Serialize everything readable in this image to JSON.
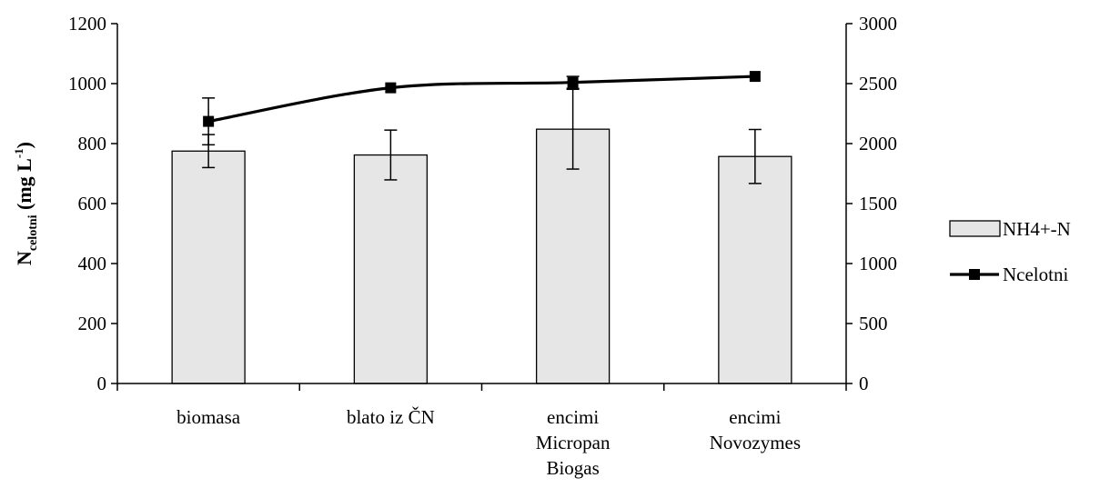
{
  "chart_data": {
    "type": "bar",
    "categories": [
      [
        "biomasa"
      ],
      [
        "blato iz ČN"
      ],
      [
        "encimi",
        "Micropan",
        "Biogas"
      ],
      [
        "encimi",
        "Novozymes"
      ]
    ],
    "ylabel": {
      "main": "N",
      "sub": "celotni",
      "rest": " (mg L",
      "sup": "-1",
      "end": ")"
    },
    "ylim": [
      0,
      1200
    ],
    "y_ticks": [
      0,
      200,
      400,
      600,
      800,
      1000,
      1200
    ],
    "y2lim": [
      0,
      3000
    ],
    "y2_ticks": [
      0,
      500,
      1000,
      1500,
      2000,
      2500,
      3000
    ],
    "grid": false,
    "legend_position": "right",
    "series": [
      {
        "name": "NH4+-N",
        "type": "bar",
        "axis": "left",
        "color": "#e6e6e6",
        "values": [
          775,
          762,
          848,
          757
        ],
        "errors": [
          55,
          83,
          133,
          90
        ]
      },
      {
        "name": "Ncelotni",
        "type": "line",
        "axis": "right",
        "color": "#000000",
        "values": [
          2185,
          2465,
          2510,
          2560
        ],
        "errors": [
          195,
          0,
          50,
          0
        ]
      }
    ]
  }
}
